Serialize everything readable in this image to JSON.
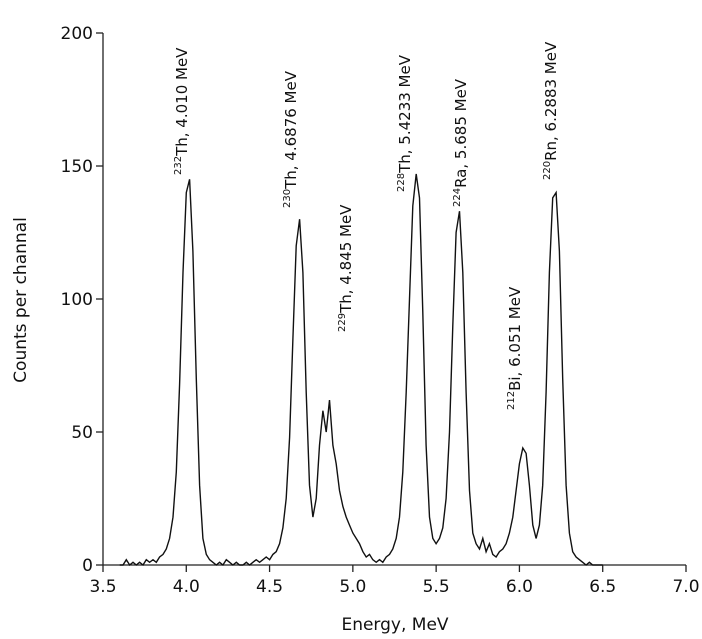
{
  "chart_data": {
    "type": "line",
    "xlabel": "Energy,  MeV",
    "ylabel": "Counts per channal",
    "color": "#111111",
    "xlim": [
      3.5,
      7.0
    ],
    "xticks": [
      3.5,
      {
        "value": 4,
        "label": "4.0"
      },
      4.5,
      {
        "value": 5,
        "label": "5.0"
      },
      5.5,
      {
        "value": 6,
        "label": "6.0"
      },
      6.5,
      {
        "value": 7,
        "label": "7.0"
      }
    ],
    "ylim": [
      0,
      200
    ],
    "yticks": [
      0,
      50,
      100,
      150,
      200
    ],
    "x": [
      3.6,
      3.62,
      3.64,
      3.66,
      3.68,
      3.7,
      3.72,
      3.74,
      3.76,
      3.78,
      3.8,
      3.82,
      3.84,
      3.86,
      3.88,
      3.9,
      3.92,
      3.94,
      3.96,
      3.98,
      4.0,
      4.02,
      4.04,
      4.06,
      4.08,
      4.1,
      4.12,
      4.14,
      4.16,
      4.18,
      4.2,
      4.22,
      4.24,
      4.26,
      4.28,
      4.3,
      4.32,
      4.34,
      4.36,
      4.38,
      4.4,
      4.42,
      4.44,
      4.46,
      4.48,
      4.5,
      4.52,
      4.54,
      4.56,
      4.58,
      4.6,
      4.62,
      4.64,
      4.66,
      4.68,
      4.7,
      4.72,
      4.74,
      4.76,
      4.78,
      4.8,
      4.82,
      4.84,
      4.86,
      4.88,
      4.9,
      4.92,
      4.94,
      4.96,
      4.98,
      5.0,
      5.02,
      5.04,
      5.06,
      5.08,
      5.1,
      5.12,
      5.14,
      5.16,
      5.18,
      5.2,
      5.22,
      5.24,
      5.26,
      5.28,
      5.3,
      5.32,
      5.34,
      5.36,
      5.38,
      5.4,
      5.42,
      5.44,
      5.46,
      5.48,
      5.5,
      5.52,
      5.54,
      5.56,
      5.58,
      5.6,
      5.62,
      5.64,
      5.66,
      5.68,
      5.7,
      5.72,
      5.74,
      5.76,
      5.78,
      5.8,
      5.82,
      5.84,
      5.86,
      5.88,
      5.9,
      5.92,
      5.94,
      5.96,
      5.98,
      6.0,
      6.02,
      6.04,
      6.06,
      6.08,
      6.1,
      6.12,
      6.14,
      6.16,
      6.18,
      6.2,
      6.22,
      6.24,
      6.26,
      6.28,
      6.3,
      6.32,
      6.34,
      6.36,
      6.38,
      6.4,
      6.42,
      6.44,
      6.46,
      6.48,
      6.5
    ],
    "values": [
      0,
      0,
      2,
      0,
      1,
      0,
      1,
      0,
      2,
      1,
      2,
      1,
      3,
      4,
      6,
      10,
      18,
      35,
      68,
      110,
      140,
      145,
      118,
      70,
      30,
      10,
      4,
      2,
      1,
      0,
      1,
      0,
      2,
      1,
      0,
      1,
      0,
      0,
      1,
      0,
      1,
      2,
      1,
      2,
      3,
      2,
      4,
      5,
      8,
      14,
      25,
      48,
      85,
      120,
      130,
      110,
      65,
      30,
      18,
      25,
      45,
      58,
      50,
      62,
      45,
      38,
      28,
      22,
      18,
      15,
      12,
      10,
      8,
      5,
      3,
      4,
      2,
      1,
      2,
      1,
      3,
      4,
      6,
      10,
      18,
      35,
      65,
      100,
      135,
      147,
      138,
      95,
      45,
      18,
      10,
      8,
      10,
      14,
      25,
      50,
      90,
      125,
      133,
      110,
      65,
      28,
      12,
      8,
      6,
      10,
      5,
      8,
      4,
      3,
      5,
      6,
      8,
      12,
      18,
      28,
      38,
      44,
      42,
      30,
      15,
      10,
      15,
      30,
      65,
      110,
      138,
      140,
      118,
      70,
      30,
      12,
      5,
      3,
      2,
      1,
      0,
      1,
      0,
      0,
      0,
      0
    ],
    "annotations": [
      {
        "mass": "232",
        "text": "Th, 4.010 MeV"
      },
      {
        "mass": "230",
        "text": "Th, 4.6876 MeV"
      },
      {
        "mass": "229",
        "text": "Th, 4.845 MeV"
      },
      {
        "mass": "228",
        "text": "Th, 5.4233 MeV"
      },
      {
        "mass": "224",
        "text": "Ra, 5.685 MeV"
      },
      {
        "mass": "212",
        "text": "Bi, 6.051 MeV"
      },
      {
        "mass": "220",
        "text": "Rn, 6.2883 MeV"
      }
    ]
  }
}
